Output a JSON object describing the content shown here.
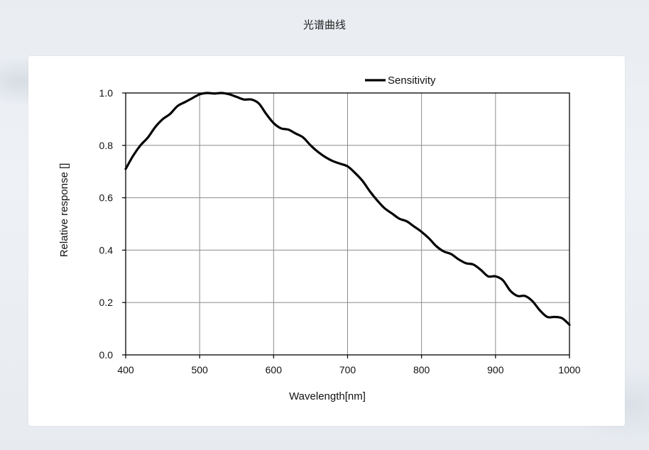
{
  "page": {
    "title": "光谱曲线"
  },
  "chart_data": {
    "type": "line",
    "title": "",
    "xlabel": "Wavelength[nm]",
    "ylabel": "Relative response []",
    "xlim": [
      400,
      1000
    ],
    "ylim": [
      0,
      1.0
    ],
    "xticks": [
      "400",
      "500",
      "600",
      "700",
      "800",
      "900",
      "1000"
    ],
    "yticks": [
      "0.0",
      "0.2",
      "0.4",
      "0.6",
      "0.8",
      "1.0"
    ],
    "grid": true,
    "legend_position": "top-center",
    "series": [
      {
        "name": "Sensitivity",
        "color": "#000000",
        "x": [
          400,
          410,
          420,
          430,
          440,
          450,
          460,
          470,
          480,
          490,
          500,
          510,
          520,
          530,
          540,
          550,
          560,
          570,
          580,
          590,
          600,
          610,
          620,
          630,
          640,
          650,
          660,
          670,
          680,
          690,
          700,
          710,
          720,
          730,
          740,
          750,
          760,
          770,
          780,
          790,
          800,
          810,
          820,
          830,
          840,
          850,
          860,
          870,
          880,
          890,
          900,
          910,
          920,
          930,
          940,
          950,
          960,
          970,
          980,
          990,
          1000
        ],
        "y": [
          0.71,
          0.76,
          0.8,
          0.83,
          0.87,
          0.9,
          0.92,
          0.95,
          0.965,
          0.98,
          0.995,
          1.0,
          0.998,
          1.0,
          0.995,
          0.985,
          0.975,
          0.975,
          0.96,
          0.92,
          0.885,
          0.865,
          0.86,
          0.845,
          0.83,
          0.8,
          0.775,
          0.755,
          0.74,
          0.73,
          0.72,
          0.695,
          0.665,
          0.625,
          0.59,
          0.56,
          0.54,
          0.52,
          0.51,
          0.49,
          0.47,
          0.445,
          0.415,
          0.395,
          0.385,
          0.365,
          0.35,
          0.345,
          0.325,
          0.3,
          0.3,
          0.285,
          0.245,
          0.225,
          0.225,
          0.205,
          0.17,
          0.145,
          0.145,
          0.14,
          0.115
        ]
      }
    ]
  }
}
